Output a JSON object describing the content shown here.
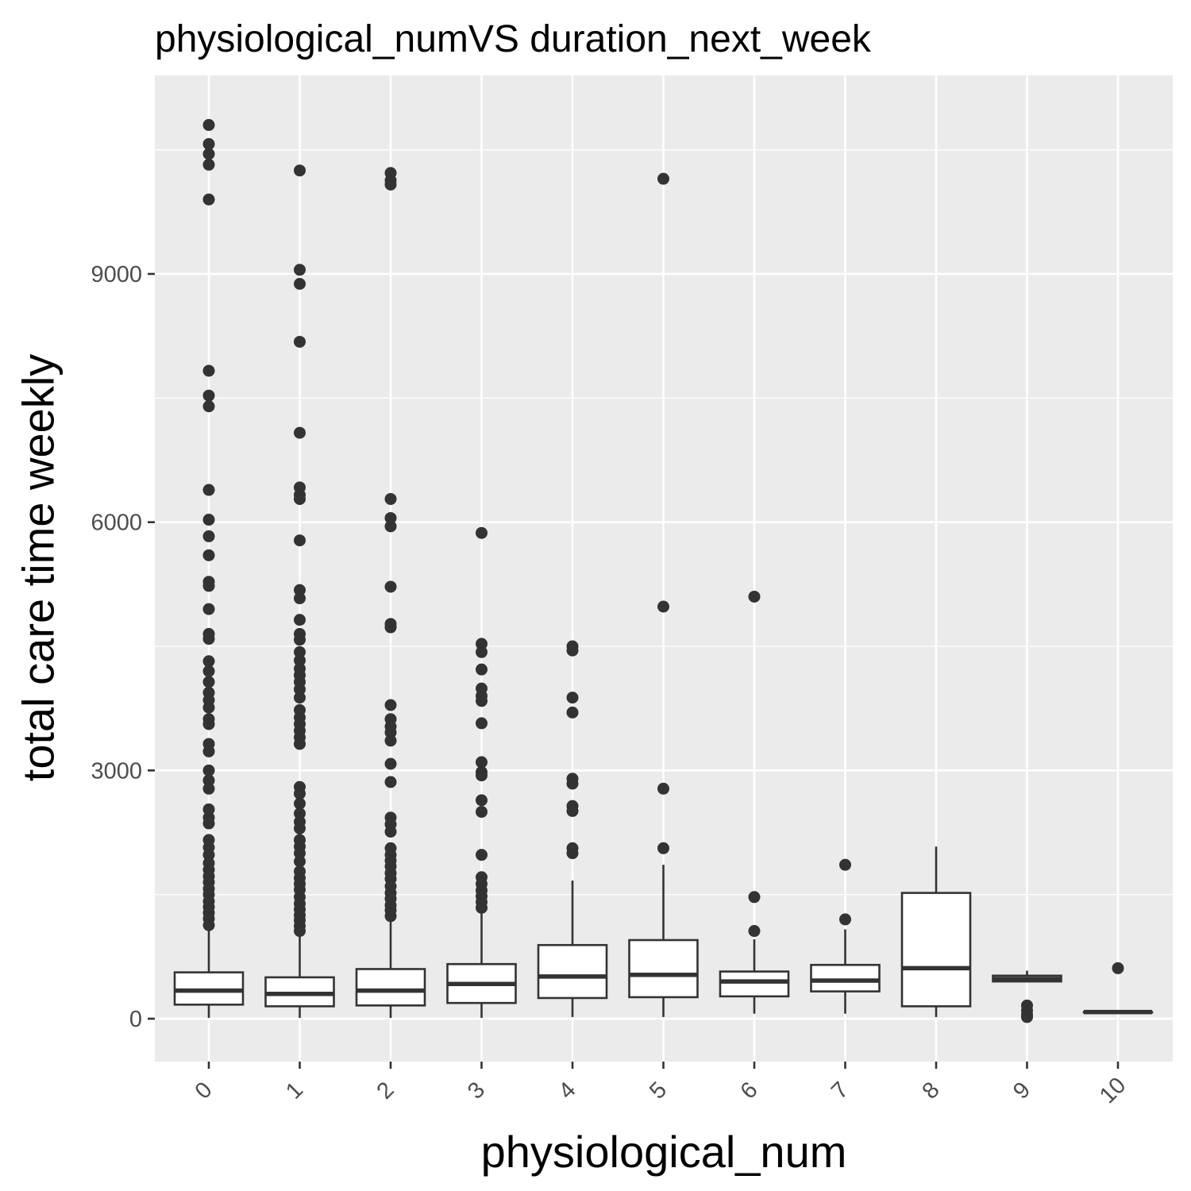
{
  "chart_data": {
    "type": "box",
    "title": "physiological_numVS duration_next_week",
    "xlabel": "physiological_num",
    "ylabel": "total care time weekly",
    "ylim": [
      -520,
      11100
    ],
    "y_ticks": [
      0,
      3000,
      6000,
      9000
    ],
    "categories": [
      "0",
      "1",
      "2",
      "3",
      "4",
      "5",
      "6",
      "7",
      "8",
      "9",
      "10"
    ],
    "grid": true,
    "panel_color": "#ebebeb",
    "grid_color": "#ffffff",
    "box_line_color": "#333333",
    "boxes": [
      {
        "category": "0",
        "q1": 170,
        "median": 340,
        "q3": 560,
        "whisker_low": 10,
        "whisker_high": 1090,
        "outliers": [
          10800,
          10570,
          10450,
          10320,
          9900,
          7830,
          7530,
          7400,
          6390,
          6030,
          5830,
          5600,
          5280,
          5230,
          4950,
          4650,
          4590,
          4320,
          4200,
          4070,
          3940,
          3850,
          3760,
          3620,
          3560,
          3320,
          3230,
          3000,
          2880,
          2780,
          2530,
          2430,
          2360,
          2160,
          2070,
          1980,
          1880,
          1800,
          1720,
          1650,
          1570,
          1500,
          1420,
          1350,
          1280,
          1210,
          1130
        ]
      },
      {
        "category": "1",
        "q1": 150,
        "median": 300,
        "q3": 500,
        "whisker_low": 10,
        "whisker_high": 1030,
        "outliers": [
          10250,
          9050,
          8880,
          8180,
          7080,
          6420,
          6330,
          6280,
          5780,
          5180,
          5080,
          4820,
          4650,
          4580,
          4430,
          4330,
          4230,
          4150,
          4070,
          3980,
          3880,
          3730,
          3640,
          3560,
          3480,
          3400,
          3320,
          2800,
          2720,
          2600,
          2480,
          2380,
          2300,
          2160,
          2080,
          2000,
          1900,
          1780,
          1700,
          1630,
          1560,
          1470,
          1390,
          1320,
          1250,
          1190,
          1120,
          1060
        ]
      },
      {
        "category": "2",
        "q1": 160,
        "median": 340,
        "q3": 600,
        "whisker_low": 10,
        "whisker_high": 1200,
        "outliers": [
          10220,
          10130,
          10080,
          6280,
          6050,
          5950,
          5220,
          4770,
          4730,
          3790,
          3620,
          3530,
          3460,
          3360,
          3080,
          2860,
          2430,
          2350,
          2260,
          2060,
          1980,
          1910,
          1840,
          1760,
          1690,
          1600,
          1520,
          1450,
          1370,
          1310,
          1240
        ]
      },
      {
        "category": "3",
        "q1": 190,
        "median": 420,
        "q3": 660,
        "whisker_low": 10,
        "whisker_high": 1280,
        "outliers": [
          5870,
          4530,
          4430,
          4220,
          3990,
          3900,
          3840,
          3570,
          3100,
          2980,
          2940,
          2640,
          2500,
          1980,
          1710,
          1630,
          1550,
          1480,
          1410,
          1340
        ]
      },
      {
        "category": "4",
        "q1": 250,
        "median": 510,
        "q3": 890,
        "whisker_low": 20,
        "whisker_high": 1670,
        "outliers": [
          4500,
          4450,
          3880,
          3700,
          2900,
          2840,
          2570,
          2510,
          2060,
          2000
        ]
      },
      {
        "category": "5",
        "q1": 260,
        "median": 530,
        "q3": 950,
        "whisker_low": 20,
        "whisker_high": 1860,
        "outliers": [
          10150,
          4980,
          2780,
          2060
        ]
      },
      {
        "category": "6",
        "q1": 270,
        "median": 450,
        "q3": 570,
        "whisker_low": 60,
        "whisker_high": 960,
        "outliers": [
          5100,
          1470,
          1060
        ]
      },
      {
        "category": "7",
        "q1": 330,
        "median": 460,
        "q3": 650,
        "whisker_low": 60,
        "whisker_high": 1080,
        "outliers": [
          1860,
          1200
        ]
      },
      {
        "category": "8",
        "q1": 150,
        "median": 610,
        "q3": 1520,
        "whisker_low": 20,
        "whisker_high": 2080,
        "outliers": []
      },
      {
        "category": "9",
        "q1": 450,
        "median": 480,
        "q3": 520,
        "whisker_low": 450,
        "whisker_high": 580,
        "outliers": [
          160,
          100,
          50,
          20
        ]
      },
      {
        "category": "10",
        "q1": 80,
        "median": 80,
        "q3": 80,
        "whisker_low": 80,
        "whisker_high": 80,
        "outliers": [
          610
        ]
      }
    ]
  }
}
